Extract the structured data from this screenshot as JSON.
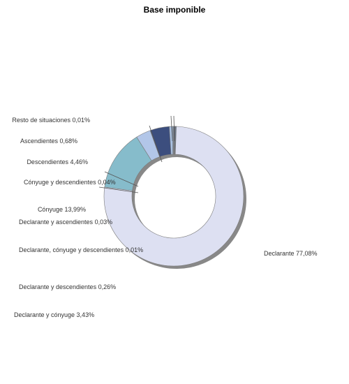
{
  "chart_data": {
    "type": "pie",
    "title": "Base imponible",
    "subtype": "donut",
    "slices": [
      {
        "label": "Declarante 77,08%",
        "value": 77.08,
        "color": "#dde0f2"
      },
      {
        "label": "Cónyuge 13,99%",
        "value": 13.99,
        "color": "#86bccb"
      },
      {
        "label": "Declarante y cónyuge 3,43%",
        "value": 3.43,
        "color": "#b2c6e8"
      },
      {
        "label": "Descendientes 4,46%",
        "value": 4.46,
        "color": "#3c4e7e"
      },
      {
        "label": "Ascendientes 0,68%",
        "value": 0.68,
        "color": "#a9c2e4"
      },
      {
        "label": "Declarante y descendientes 0,26%",
        "value": 0.26,
        "color": "#8aa3c4"
      },
      {
        "label": "Cónyuge y descendientes 0,04%",
        "value": 0.04,
        "color": "#6a83a8"
      },
      {
        "label": "Declarante y ascendientes 0,03%",
        "value": 0.03,
        "color": "#4d6690"
      },
      {
        "label": "Resto de situaciones 0,01%",
        "value": 0.01,
        "color": "#2f4472"
      },
      {
        "label": "Declarante, cónyuge y descendientes 0,01%",
        "value": 0.01,
        "color": "#5a7aa0"
      }
    ],
    "legend": "none (callout labels)"
  }
}
